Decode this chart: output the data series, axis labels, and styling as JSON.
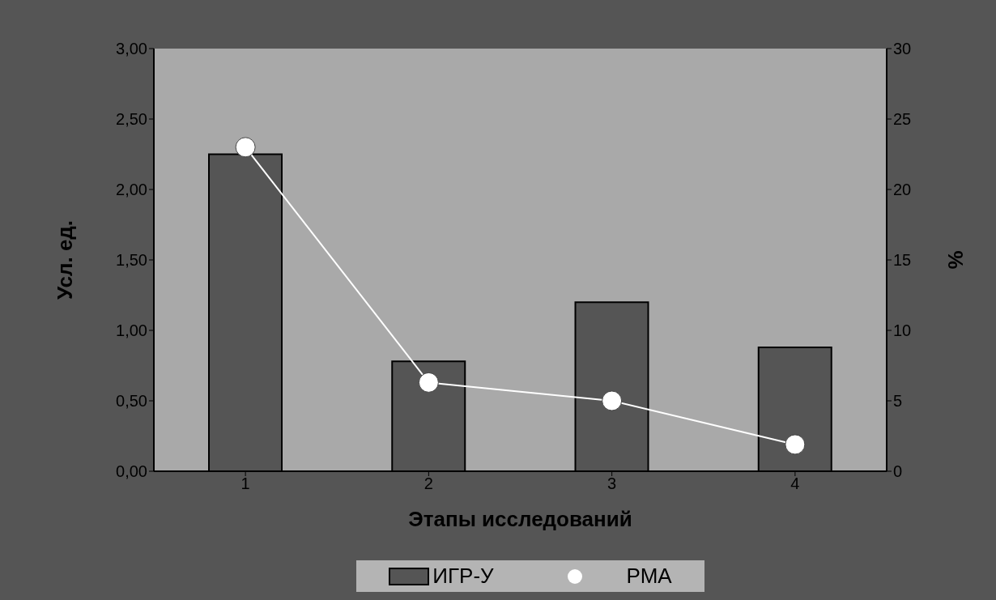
{
  "chart_data": {
    "type": "bar",
    "xlabel": "Этапы исследований",
    "ylabel": "Усл. ед.",
    "y2label": "%",
    "categories": [
      "1",
      "2",
      "3",
      "4"
    ],
    "series": [
      {
        "name": "ИГР-У",
        "color": "#555555",
        "values": [
          2.25,
          0.78,
          1.2,
          0.88
        ]
      },
      {
        "name": "РМА",
        "type": "line",
        "axis": "y2",
        "color": "#ffffff",
        "values": [
          23,
          6.3,
          5,
          1.9
        ]
      }
    ],
    "ylim": [
      0,
      3
    ],
    "yticks": [
      {
        "value": 0,
        "label": "0,00"
      },
      {
        "value": 0.5,
        "label": "0,50"
      },
      {
        "value": 1,
        "label": "1,00"
      },
      {
        "value": 1.5,
        "label": "1,50"
      },
      {
        "value": 2,
        "label": "2,00"
      },
      {
        "value": 2.5,
        "label": "2,50"
      },
      {
        "value": 3,
        "label": "3,00"
      }
    ],
    "y2lim": [
      0,
      30
    ],
    "y2ticks": [
      0,
      5,
      10,
      15,
      20,
      25,
      30
    ],
    "grid": false,
    "legend": "bottom",
    "marker": "circle"
  }
}
